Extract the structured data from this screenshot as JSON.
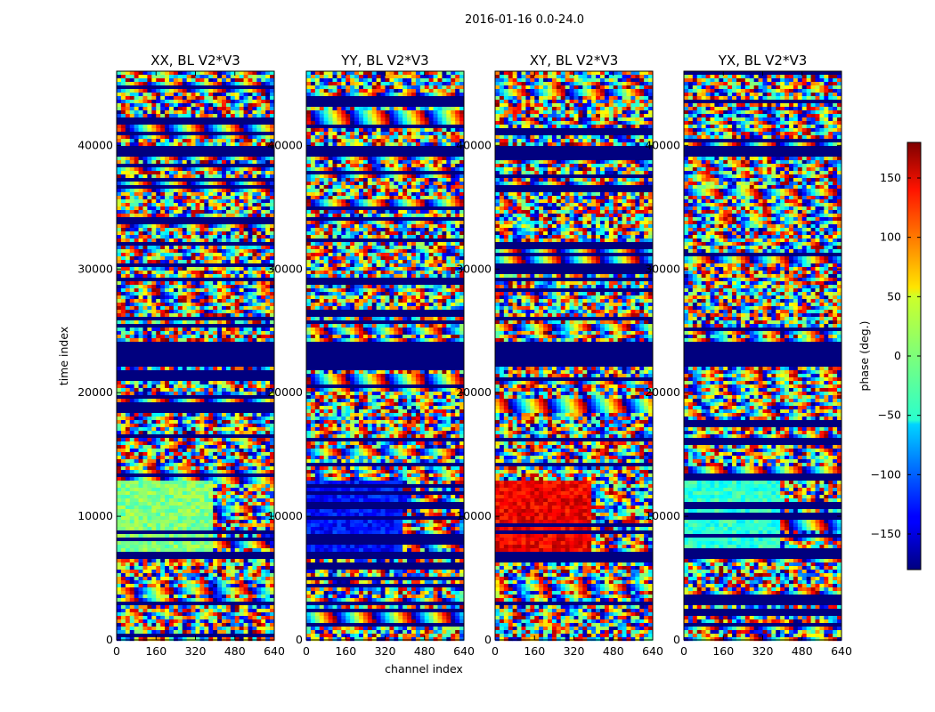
{
  "chart_data": {
    "type": "heatmap",
    "suptitle": "2016-01-16 0.0-24.0",
    "panels": [
      {
        "title": "XX, BL V2*V3",
        "pol": "XX"
      },
      {
        "title": "YY, BL V2*V3",
        "pol": "YY"
      },
      {
        "title": "XY, BL V2*V3",
        "pol": "XY"
      },
      {
        "title": "YX, BL V2*V3",
        "pol": "YX"
      }
    ],
    "xlabel": "channel index",
    "ylabel": "time index",
    "xlim": [
      0,
      640
    ],
    "ylim": [
      0,
      46000
    ],
    "xticks": [
      0,
      160,
      320,
      480,
      640
    ],
    "xtick_labels": [
      "0",
      "160",
      "320",
      "480",
      "640"
    ],
    "yticks": [
      0,
      10000,
      20000,
      30000,
      40000
    ],
    "ytick_labels": [
      "0",
      "10000",
      "20000",
      "30000",
      "40000"
    ],
    "colorbar": {
      "label": "phase (deg.)",
      "vmin": -180,
      "vmax": 180,
      "ticks": [
        -150,
        -100,
        -50,
        0,
        50,
        100,
        150
      ],
      "tick_labels": [
        "−150",
        "−100",
        "−50",
        "0",
        "50",
        "100",
        "150"
      ],
      "colormap": "jet"
    },
    "features": {
      "flagged_time_ranges": [
        [
          22000,
          24000
        ],
        [
          6500,
          7200
        ],
        [
          39000,
          40000
        ],
        [
          2700,
          3000
        ]
      ],
      "coherent_block_time_range": [
        7200,
        12800
      ],
      "coherent_block_channel_split": 400,
      "block_phase_deg": {
        "XX": 0,
        "YY": -130,
        "XY": 140,
        "YX": -30
      }
    }
  }
}
